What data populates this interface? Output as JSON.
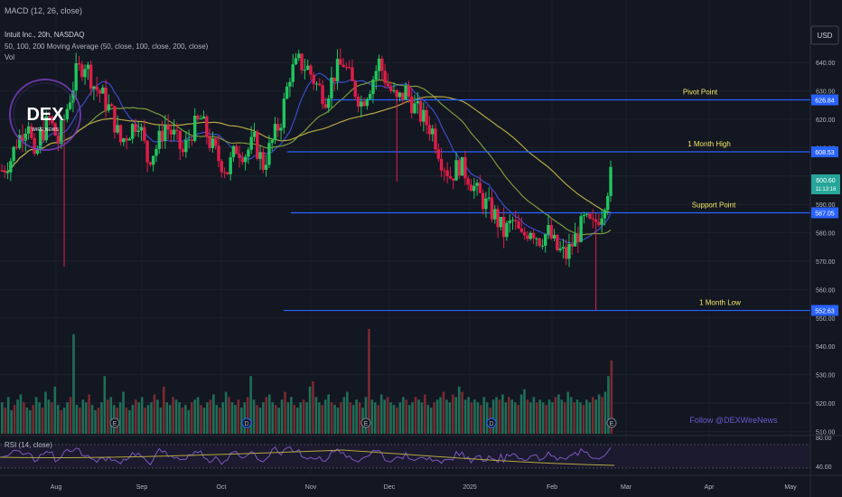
{
  "header": {
    "macd_label": "MACD (12, 26, close)",
    "symbol_label": "Intuit Inc., 20h, NASDAQ",
    "ma_label": "50, 100, 200 Moving Average (50, close, 100, close, 200, close)",
    "vol_label": "Vol",
    "currency": "USD"
  },
  "logo": {
    "text": "DEX",
    "subtext": "WIRE NEWS"
  },
  "watermark": "Follow @DEXWireNews",
  "colors": {
    "up": "#26a69a",
    "down": "#ef5350",
    "up_bright": "#22c55e",
    "down_bright": "#e11d48",
    "level_line": "#2962ff",
    "level_text": "#f5e663",
    "ma50": "#3b4cca",
    "ma100": "#7a9a3c",
    "ma200": "#b5a642"
  },
  "chart_data": {
    "type": "candlestick",
    "x_ticks": [
      "Aug",
      "Sep",
      "Oct",
      "Nov",
      "Dec",
      "2025",
      "Feb",
      "Mar",
      "Apr",
      "May"
    ],
    "y_ticks": [
      510,
      520,
      530,
      540,
      550,
      560,
      570,
      580,
      590,
      600,
      610,
      620,
      630,
      640
    ],
    "ylim": [
      510,
      646
    ],
    "levels": [
      {
        "name": "Pivot Point",
        "value": 626.84,
        "label": "626.84"
      },
      {
        "name": "1 Month High",
        "value": 608.53,
        "label": "608.53"
      },
      {
        "name": "Support Point",
        "value": 587.05,
        "label": "587.05"
      },
      {
        "name": "1 Month Low",
        "value": 552.63,
        "label": "552.63"
      }
    ],
    "last_price": {
      "value": 600.6,
      "label": "600.60",
      "countdown": "11:13:16"
    },
    "rsi": {
      "label": "RSI (14, close)",
      "ticks": [
        80,
        40
      ]
    },
    "event_markers": [
      "E",
      "D",
      "E",
      "D",
      "E"
    ],
    "price_path": [
      [
        0,
        602
      ],
      [
        3,
        606
      ],
      [
        5,
        612
      ],
      [
        7,
        616
      ],
      [
        9,
        620
      ],
      [
        11,
        604
      ],
      [
        13,
        614
      ],
      [
        16,
        620
      ],
      [
        19,
        612
      ],
      [
        22,
        624
      ],
      [
        25,
        636
      ],
      [
        28,
        640
      ],
      [
        31,
        632
      ],
      [
        34,
        628
      ],
      [
        37,
        622
      ],
      [
        40,
        612
      ],
      [
        43,
        616
      ],
      [
        46,
        620
      ],
      [
        49,
        606
      ],
      [
        52,
        610
      ],
      [
        55,
        618
      ],
      [
        58,
        614
      ],
      [
        61,
        608
      ],
      [
        64,
        616
      ],
      [
        67,
        620
      ],
      [
        70,
        612
      ],
      [
        73,
        606
      ],
      [
        76,
        602
      ],
      [
        79,
        610
      ],
      [
        82,
        608
      ],
      [
        85,
        612
      ],
      [
        88,
        604
      ],
      [
        91,
        612
      ],
      [
        94,
        620
      ],
      [
        97,
        636
      ],
      [
        100,
        640
      ],
      [
        103,
        638
      ],
      [
        106,
        632
      ],
      [
        109,
        628
      ],
      [
        112,
        636
      ],
      [
        115,
        640
      ],
      [
        118,
        632
      ],
      [
        121,
        626
      ],
      [
        124,
        632
      ],
      [
        127,
        640
      ],
      [
        130,
        632
      ],
      [
        133,
        626
      ],
      [
        136,
        630
      ],
      [
        139,
        624
      ],
      [
        142,
        620
      ],
      [
        145,
        616
      ],
      [
        148,
        606
      ],
      [
        151,
        600
      ],
      [
        154,
        604
      ],
      [
        157,
        600
      ],
      [
        160,
        594
      ],
      [
        163,
        590
      ],
      [
        166,
        586
      ],
      [
        169,
        580
      ],
      [
        172,
        584
      ],
      [
        175,
        578
      ],
      [
        178,
        582
      ],
      [
        181,
        578
      ],
      [
        184,
        580
      ],
      [
        187,
        574
      ],
      [
        190,
        572
      ],
      [
        193,
        578
      ],
      [
        196,
        584
      ],
      [
        199,
        582
      ],
      [
        202,
        588
      ],
      [
        205,
        600
      ]
    ],
    "volumes": [
      12,
      10,
      14,
      9,
      11,
      13,
      15,
      12,
      10,
      9,
      11,
      14,
      12,
      10,
      16,
      13,
      12,
      18,
      11,
      9,
      10,
      12,
      14,
      38,
      11,
      10,
      13,
      12,
      15,
      11,
      9,
      10,
      12,
      22,
      13,
      14,
      11,
      10,
      12,
      16,
      10,
      9,
      11,
      13,
      12,
      14,
      10,
      11,
      12,
      15,
      13,
      10,
      18,
      12,
      11,
      14,
      13,
      12,
      10,
      11,
      9,
      12,
      13,
      14,
      11,
      10,
      12,
      13,
      15,
      11,
      10,
      12,
      16,
      14,
      12,
      11,
      13,
      10,
      12,
      14,
      22,
      13,
      11,
      10,
      12,
      14,
      15,
      12,
      11,
      10,
      13,
      16,
      12,
      14,
      11,
      10,
      12,
      13,
      12,
      18,
      20,
      14,
      12,
      11,
      13,
      15,
      12,
      11,
      10,
      12,
      14,
      16,
      12,
      11,
      13,
      12,
      10,
      14,
      40,
      13,
      12,
      11,
      15,
      13,
      14,
      12,
      11,
      10,
      12,
      14,
      13,
      11,
      12,
      14,
      13,
      12,
      15,
      11,
      10,
      12,
      13,
      14,
      16,
      13,
      12,
      15,
      14,
      18,
      16,
      13,
      14,
      12,
      13,
      12,
      11,
      14,
      12,
      10,
      13,
      14,
      13,
      15,
      12,
      14,
      13,
      12,
      11,
      15,
      17,
      13,
      12,
      14,
      12,
      13,
      12,
      11,
      13,
      12,
      14,
      15,
      13,
      12,
      16,
      14,
      12,
      13,
      12,
      11,
      13,
      12,
      14,
      13,
      15,
      14,
      16,
      22,
      28
    ]
  }
}
